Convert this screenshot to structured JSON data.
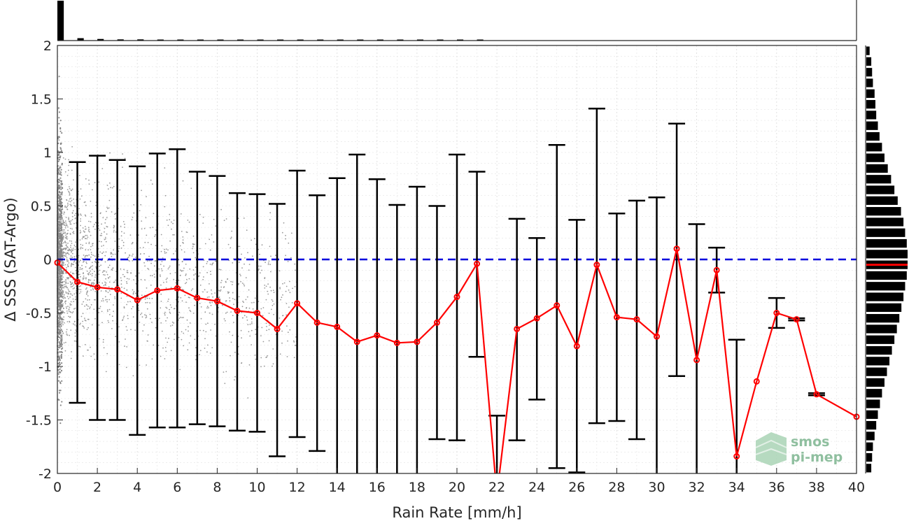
{
  "chart_data": {
    "type": "scatter",
    "xlabel": "Rain Rate [mm/h]",
    "ylabel": "Δ SSS (SAT-Argo)",
    "xlim": [
      0,
      40
    ],
    "ylim": [
      -2,
      2
    ],
    "x_ticks": [
      "0",
      "2",
      "4",
      "6",
      "8",
      "10",
      "12",
      "14",
      "16",
      "18",
      "20",
      "22",
      "24",
      "26",
      "28",
      "30",
      "32",
      "34",
      "36",
      "38",
      "40"
    ],
    "y_ticks": [
      "2",
      "1.5",
      "1",
      "0.5",
      "0",
      "-0.5",
      "-1",
      "-1.5",
      "-2"
    ],
    "grid": true,
    "reference_line": {
      "y": 0,
      "style": "dashed",
      "color": "#0000dd"
    },
    "mean_series": {
      "color": "#ff0000",
      "x": [
        0,
        1,
        2,
        3,
        4,
        5,
        6,
        7,
        8,
        9,
        10,
        11,
        12,
        13,
        14,
        15,
        16,
        17,
        18,
        19,
        20,
        21,
        22,
        23,
        24,
        25,
        26,
        27,
        28,
        29,
        30,
        31,
        32,
        33,
        34,
        35,
        36,
        37,
        38,
        40
      ],
      "y": [
        -0.03,
        -0.21,
        -0.26,
        -0.28,
        -0.38,
        -0.29,
        -0.27,
        -0.36,
        -0.39,
        -0.48,
        -0.5,
        -0.65,
        -0.41,
        -0.59,
        -0.63,
        -0.77,
        -0.71,
        -0.78,
        -0.77,
        -0.59,
        -0.35,
        -0.04,
        -2.2,
        -0.65,
        -0.55,
        -0.43,
        -0.81,
        -0.05,
        -0.54,
        -0.56,
        -0.72,
        0.1,
        -0.94,
        -0.1,
        -1.84,
        -1.14,
        -0.5,
        -0.56,
        -1.26,
        -1.47
      ]
    },
    "error_bars": {
      "color": "#000000",
      "x": [
        1,
        2,
        3,
        4,
        5,
        6,
        7,
        8,
        9,
        10,
        11,
        12,
        13,
        14,
        15,
        16,
        17,
        18,
        19,
        20,
        21,
        22,
        23,
        24,
        25,
        26,
        27,
        28,
        29,
        30,
        31,
        32,
        33,
        34,
        36,
        37,
        38
      ],
      "upper": [
        0.91,
        0.97,
        0.93,
        0.87,
        0.99,
        1.03,
        0.82,
        0.78,
        0.62,
        0.61,
        0.52,
        0.83,
        0.6,
        0.76,
        0.98,
        0.75,
        0.51,
        0.68,
        0.5,
        0.98,
        0.82,
        -1.46,
        0.38,
        0.2,
        1.07,
        0.37,
        1.41,
        0.43,
        0.55,
        0.58,
        1.27,
        0.33,
        0.11,
        -0.75,
        -0.36,
        -0.55,
        -1.25
      ],
      "lower": [
        -1.34,
        -1.5,
        -1.5,
        -1.64,
        -1.57,
        -1.57,
        -1.54,
        -1.56,
        -1.6,
        -1.61,
        -1.84,
        -1.66,
        -1.79,
        -2.5,
        -2.5,
        -2.5,
        -2.5,
        -2.5,
        -1.68,
        -1.69,
        -0.91,
        -2.5,
        -1.69,
        -1.31,
        -1.95,
        -1.99,
        -1.53,
        -1.51,
        -1.68,
        -2.5,
        -1.09,
        -2.5,
        -0.31,
        -2.5,
        -0.64,
        -0.57,
        -1.27
      ]
    },
    "scatter_points": {
      "color": "#999999",
      "description_x_range": [
        0,
        12
      ]
    },
    "top_histogram": {
      "x_bins": [
        0,
        1,
        2,
        3,
        4,
        5,
        6,
        7,
        8,
        9,
        10,
        11,
        12,
        13,
        14,
        15,
        16,
        17,
        18,
        19,
        20,
        21,
        22,
        23,
        24,
        25,
        26,
        27,
        28,
        29,
        30,
        31,
        32,
        33,
        34,
        35,
        36,
        37,
        38,
        39
      ],
      "counts": [
        100,
        6,
        4,
        3,
        3,
        2,
        2,
        2,
        2,
        2,
        2,
        2,
        2,
        2,
        1,
        1,
        1,
        1,
        1,
        1,
        1,
        1,
        0,
        0,
        0,
        0,
        0,
        0,
        0,
        0,
        0,
        0,
        0,
        0,
        0,
        0,
        0,
        0,
        0,
        0
      ]
    },
    "right_histogram": {
      "y_centers": [
        1.95,
        1.85,
        1.75,
        1.65,
        1.55,
        1.45,
        1.35,
        1.25,
        1.15,
        1.05,
        0.95,
        0.85,
        0.75,
        0.65,
        0.55,
        0.45,
        0.35,
        0.25,
        0.15,
        0.05,
        -0.05,
        -0.15,
        -0.25,
        -0.35,
        -0.45,
        -0.55,
        -0.65,
        -0.75,
        -0.85,
        -0.95,
        -1.05,
        -1.15,
        -1.25,
        -1.35,
        -1.45,
        -1.55,
        -1.65,
        -1.75,
        -1.85,
        -1.95
      ],
      "counts": [
        8,
        12,
        14,
        16,
        20,
        22,
        24,
        28,
        32,
        38,
        44,
        52,
        60,
        68,
        76,
        84,
        90,
        94,
        98,
        100,
        100,
        98,
        94,
        90,
        85,
        80,
        74,
        68,
        62,
        56,
        50,
        44,
        38,
        33,
        28,
        24,
        20,
        16,
        14,
        12
      ],
      "median_line": {
        "y": -0.05,
        "color": "#ff0000"
      }
    }
  },
  "logo": {
    "line1": "smos",
    "line2": "pi-mep"
  },
  "colors": {
    "mean": "#ff0000",
    "zero_line": "#0000dd",
    "error": "#000000",
    "scatter": "#999999",
    "grid": "#dedede"
  }
}
